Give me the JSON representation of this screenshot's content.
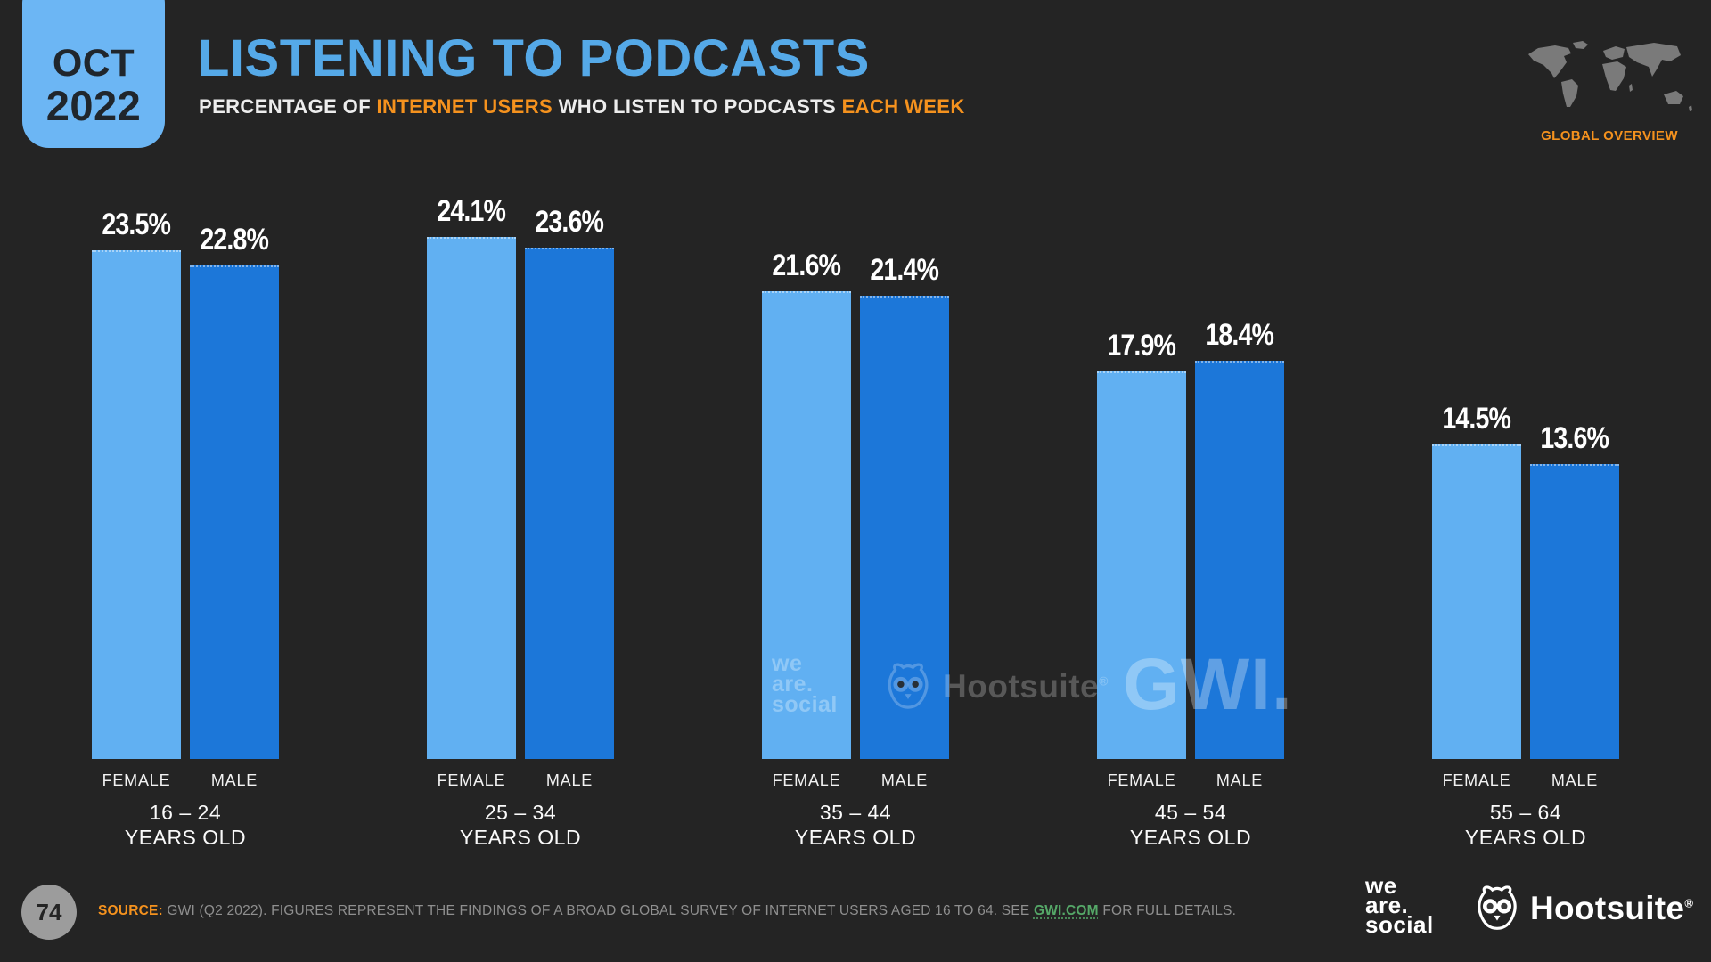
{
  "page": {
    "background": "#242424"
  },
  "header": {
    "date_badge": {
      "month": "OCT",
      "year": "2022"
    },
    "title": "LISTENING TO PODCASTS",
    "subtitle": {
      "part1": "PERCENTAGE OF ",
      "highlight1": "INTERNET USERS",
      "part2": " WHO LISTEN TO PODCASTS ",
      "highlight2": "EACH WEEK"
    },
    "region_label": "GLOBAL OVERVIEW"
  },
  "chart_data": {
    "type": "bar",
    "title": "LISTENING TO PODCASTS",
    "subtitle": "PERCENTAGE OF INTERNET USERS WHO LISTEN TO PODCASTS EACH WEEK",
    "categories": [
      "16 – 24",
      "25 – 34",
      "35 – 44",
      "45 – 54",
      "55 – 64"
    ],
    "category_suffix": "YEARS OLD",
    "series": [
      {
        "name": "FEMALE",
        "color": "#61B0F2",
        "values": [
          23.5,
          24.1,
          21.6,
          17.9,
          14.5
        ]
      },
      {
        "name": "MALE",
        "color": "#1C77D9",
        "values": [
          22.8,
          23.6,
          21.4,
          18.4,
          13.6
        ]
      }
    ],
    "value_suffix": "%",
    "ylim": [
      0,
      25.5
    ],
    "grid": false,
    "legend_position": "below-bars",
    "value_labels": "above-bars"
  },
  "watermarks": {
    "we_are_social_lines": [
      "we",
      "are.",
      "social"
    ],
    "hootsuite": "Hootsuite",
    "registered": "®",
    "gwi": "GWI."
  },
  "footer": {
    "page_number": "74",
    "source_label": "SOURCE:",
    "source_text_1": " GWI (Q2 2022). FIGURES REPRESENT THE FINDINGS OF A BROAD GLOBAL SURVEY OF INTERNET USERS AGED 16 TO 64. SEE ",
    "source_link": "GWI.COM",
    "source_text_2": " FOR FULL DETAILS.",
    "logo_we_are_social_lines": [
      "we",
      "are.",
      "social"
    ],
    "logo_hootsuite": "Hootsuite",
    "logo_registered": "®"
  },
  "colors": {
    "background": "#242424",
    "female_bar": "#61B0F2",
    "male_bar": "#1C77D9",
    "badge_blue": "#6CB6F4",
    "title_blue": "#55A9E8",
    "accent_orange": "#F5921E",
    "link_green": "#55A868",
    "source_gray": "#8F8F8F",
    "map_gray": "#7A7A7A"
  }
}
